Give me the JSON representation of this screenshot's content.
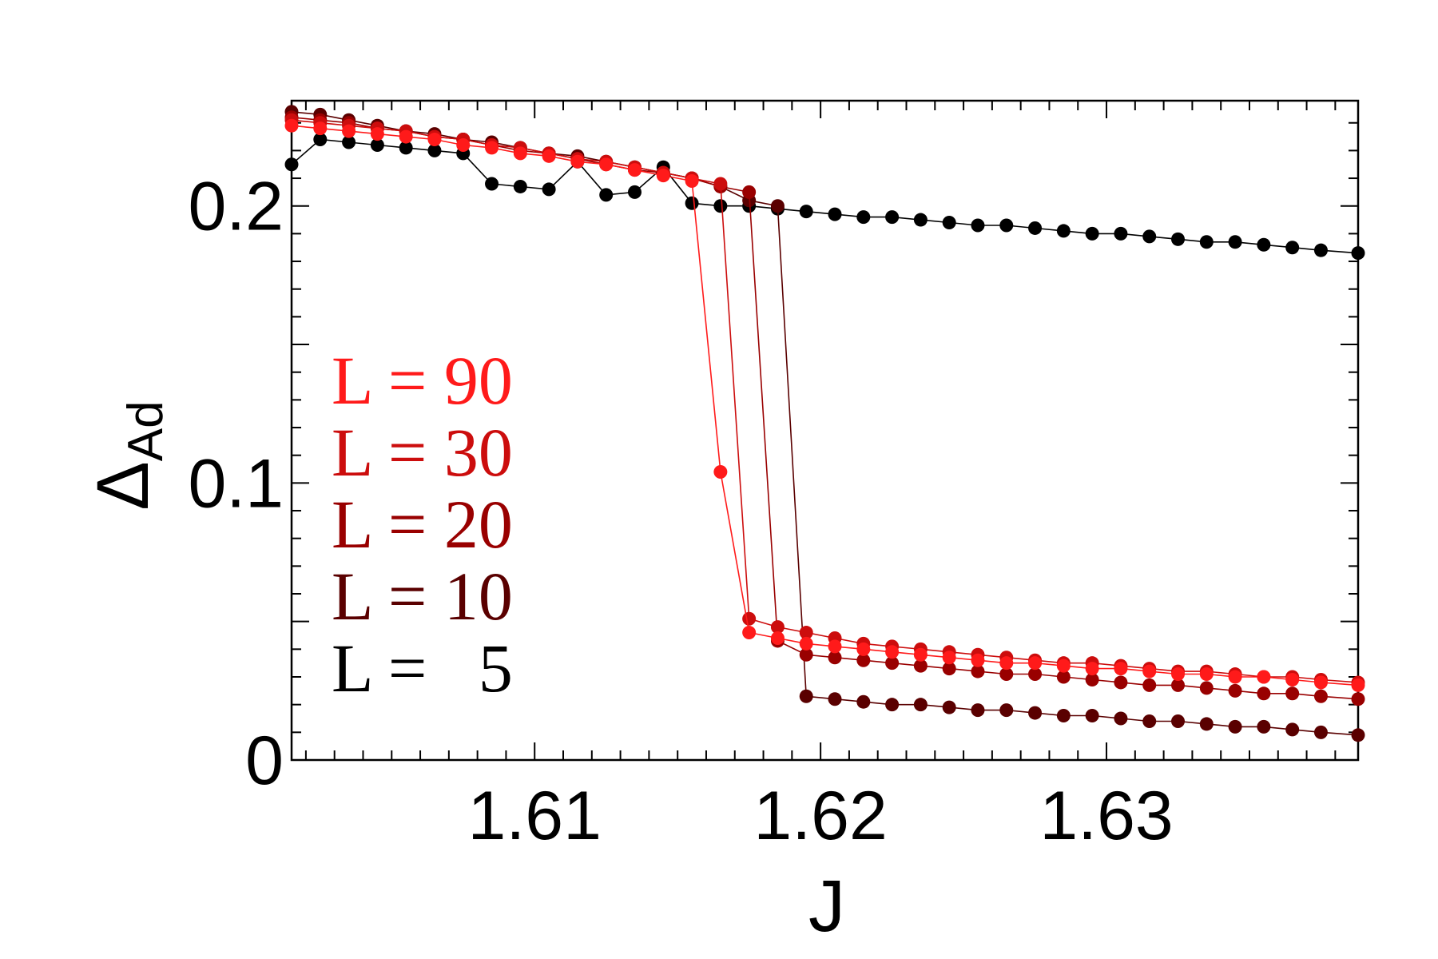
{
  "chart_data": {
    "type": "line",
    "xlabel": "J",
    "ylabel": "Δ",
    "ylabel_sub": "Ad",
    "xlim": [
      1.6015,
      1.6388
    ],
    "ylim": [
      0,
      0.238
    ],
    "x_ticks": [
      {
        "value": 1.61,
        "label": "1.61"
      },
      {
        "value": 1.62,
        "label": "1.62"
      },
      {
        "value": 1.63,
        "label": "1.63"
      }
    ],
    "y_ticks": [
      {
        "value": 0,
        "label": "0"
      },
      {
        "value": 0.1,
        "label": "0.1"
      },
      {
        "value": 0.2,
        "label": "0.2"
      }
    ],
    "x_minor_step": 0.001,
    "y_minor_step": 0.01,
    "legend_position": "left",
    "series": [
      {
        "name": "L = 90",
        "color": "#ff1a1a",
        "x": [
          1.6015,
          1.6025,
          1.6035,
          1.6045,
          1.6055,
          1.6065,
          1.6075,
          1.6085,
          1.6095,
          1.6105,
          1.6115,
          1.6125,
          1.6135,
          1.6145,
          1.6155,
          1.6165,
          1.6175,
          1.6185,
          1.6195,
          1.6205,
          1.6215,
          1.6225,
          1.6235,
          1.6245,
          1.6255,
          1.6265,
          1.6275,
          1.6285,
          1.6295,
          1.6305,
          1.6315,
          1.6325,
          1.6335,
          1.6345,
          1.6355,
          1.6365,
          1.6375,
          1.6388
        ],
        "y": [
          0.229,
          0.228,
          0.227,
          0.226,
          0.225,
          0.224,
          0.222,
          0.221,
          0.219,
          0.218,
          0.216,
          0.215,
          0.213,
          0.211,
          0.209,
          0.104,
          0.046,
          0.044,
          0.042,
          0.041,
          0.04,
          0.039,
          0.038,
          0.037,
          0.036,
          0.035,
          0.035,
          0.034,
          0.033,
          0.033,
          0.032,
          0.031,
          0.031,
          0.03,
          0.03,
          0.029,
          0.028,
          0.027
        ]
      },
      {
        "name": "L = 30",
        "color": "#cc0d0d",
        "x": [
          1.6015,
          1.6025,
          1.6035,
          1.6045,
          1.6055,
          1.6065,
          1.6075,
          1.6085,
          1.6095,
          1.6105,
          1.6115,
          1.6125,
          1.6135,
          1.6145,
          1.6155,
          1.6165,
          1.6175,
          1.6185,
          1.6195,
          1.6205,
          1.6215,
          1.6225,
          1.6235,
          1.6245,
          1.6255,
          1.6265,
          1.6275,
          1.6285,
          1.6295,
          1.6305,
          1.6315,
          1.6325,
          1.6335,
          1.6345,
          1.6355,
          1.6365,
          1.6375,
          1.6388
        ],
        "y": [
          0.231,
          0.23,
          0.229,
          0.228,
          0.227,
          0.225,
          0.224,
          0.222,
          0.221,
          0.219,
          0.217,
          0.216,
          0.214,
          0.212,
          0.21,
          0.208,
          0.051,
          0.048,
          0.046,
          0.044,
          0.042,
          0.041,
          0.04,
          0.039,
          0.038,
          0.037,
          0.036,
          0.035,
          0.035,
          0.034,
          0.033,
          0.032,
          0.032,
          0.031,
          0.03,
          0.03,
          0.029,
          0.028
        ]
      },
      {
        "name": "L = 20",
        "color": "#990000",
        "x": [
          1.6015,
          1.6025,
          1.6035,
          1.6045,
          1.6055,
          1.6065,
          1.6075,
          1.6085,
          1.6095,
          1.6105,
          1.6115,
          1.6125,
          1.6135,
          1.6145,
          1.6155,
          1.6165,
          1.6175,
          1.6185,
          1.6195,
          1.6205,
          1.6215,
          1.6225,
          1.6235,
          1.6245,
          1.6255,
          1.6265,
          1.6275,
          1.6285,
          1.6295,
          1.6305,
          1.6315,
          1.6325,
          1.6335,
          1.6345,
          1.6355,
          1.6365,
          1.6375,
          1.6388
        ],
        "y": [
          0.232,
          0.231,
          0.23,
          0.228,
          0.227,
          0.225,
          0.224,
          0.222,
          0.22,
          0.219,
          0.217,
          0.215,
          0.213,
          0.212,
          0.21,
          0.207,
          0.205,
          0.043,
          0.038,
          0.037,
          0.036,
          0.035,
          0.034,
          0.033,
          0.032,
          0.031,
          0.031,
          0.03,
          0.029,
          0.028,
          0.027,
          0.027,
          0.026,
          0.025,
          0.024,
          0.024,
          0.023,
          0.022
        ]
      },
      {
        "name": "L = 10",
        "color": "#5a0000",
        "x": [
          1.6015,
          1.6025,
          1.6035,
          1.6045,
          1.6055,
          1.6065,
          1.6075,
          1.6085,
          1.6095,
          1.6105,
          1.6115,
          1.6125,
          1.6135,
          1.6145,
          1.6155,
          1.6165,
          1.6175,
          1.6185,
          1.6195,
          1.6205,
          1.6215,
          1.6225,
          1.6235,
          1.6245,
          1.6255,
          1.6265,
          1.6275,
          1.6285,
          1.6295,
          1.6305,
          1.6315,
          1.6325,
          1.6335,
          1.6345,
          1.6355,
          1.6365,
          1.6375,
          1.6388
        ],
        "y": [
          0.234,
          0.233,
          0.231,
          0.229,
          0.227,
          0.226,
          0.224,
          0.223,
          0.221,
          0.219,
          0.218,
          0.216,
          0.214,
          0.212,
          0.21,
          0.207,
          0.202,
          0.2,
          0.023,
          0.022,
          0.021,
          0.02,
          0.02,
          0.019,
          0.018,
          0.018,
          0.017,
          0.016,
          0.016,
          0.015,
          0.014,
          0.014,
          0.013,
          0.012,
          0.012,
          0.011,
          0.01,
          0.009
        ]
      },
      {
        "name": "L =   5",
        "color": "#000000",
        "x": [
          1.6015,
          1.6025,
          1.6035,
          1.6045,
          1.6055,
          1.6065,
          1.6075,
          1.6085,
          1.6095,
          1.6105,
          1.6115,
          1.6125,
          1.6135,
          1.6145,
          1.6155,
          1.6165,
          1.6175,
          1.6185,
          1.6195,
          1.6205,
          1.6215,
          1.6225,
          1.6235,
          1.6245,
          1.6255,
          1.6265,
          1.6275,
          1.6285,
          1.6295,
          1.6305,
          1.6315,
          1.6325,
          1.6335,
          1.6345,
          1.6355,
          1.6365,
          1.6375,
          1.6388
        ],
        "y": [
          0.215,
          0.224,
          0.223,
          0.222,
          0.221,
          0.22,
          0.219,
          0.208,
          0.207,
          0.206,
          0.216,
          0.204,
          0.205,
          0.214,
          0.201,
          0.2,
          0.2,
          0.199,
          0.198,
          0.197,
          0.196,
          0.196,
          0.195,
          0.194,
          0.193,
          0.193,
          0.192,
          0.191,
          0.19,
          0.19,
          0.189,
          0.188,
          0.187,
          0.187,
          0.186,
          0.185,
          0.184,
          0.183
        ]
      }
    ]
  }
}
